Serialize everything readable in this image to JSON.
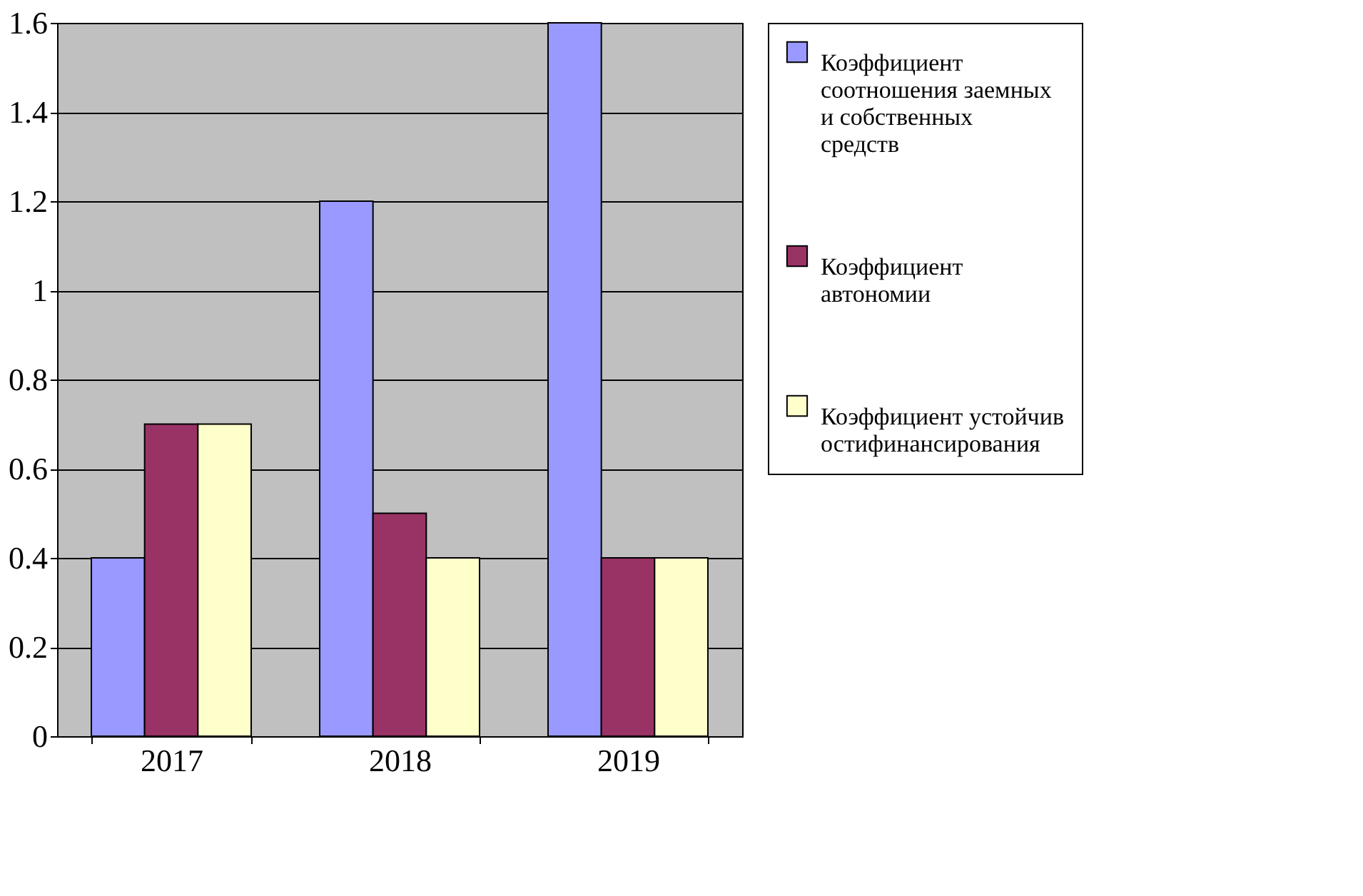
{
  "chart_data": {
    "type": "bar",
    "categories": [
      "2017",
      "2018",
      "2019"
    ],
    "series": [
      {
        "name": "Коэффициент соотношения заемных и собственных средств",
        "color": "#9999ff",
        "values": [
          0.4,
          1.2,
          1.6
        ]
      },
      {
        "name": "Коэффициент автономии",
        "color": "#993366",
        "values": [
          0.7,
          0.5,
          0.4
        ]
      },
      {
        "name": "Коэффициент устойчивостифинансирования",
        "color": "#ffffcc",
        "values": [
          0.7,
          0.4,
          0.4
        ]
      }
    ],
    "ylim": [
      0,
      1.6
    ],
    "yticks": [
      0,
      0.2,
      0.4,
      0.6,
      0.8,
      1,
      1.2,
      1.4,
      1.6
    ],
    "grid": "y",
    "legend": "right"
  }
}
